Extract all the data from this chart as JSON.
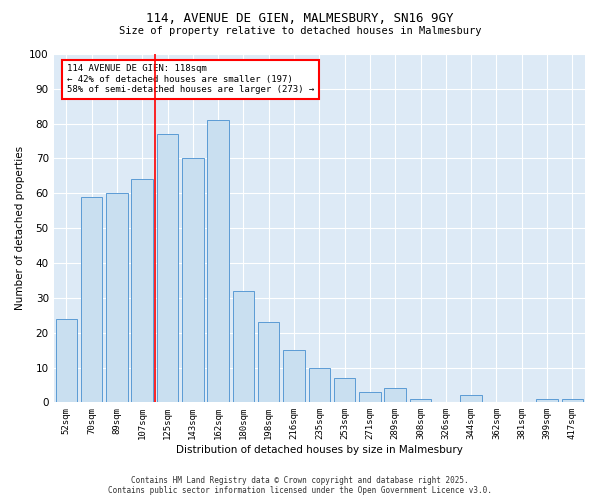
{
  "title_line1": "114, AVENUE DE GIEN, MALMESBURY, SN16 9GY",
  "title_line2": "Size of property relative to detached houses in Malmesbury",
  "xlabel": "Distribution of detached houses by size in Malmesbury",
  "ylabel": "Number of detached properties",
  "categories": [
    "52sqm",
    "70sqm",
    "89sqm",
    "107sqm",
    "125sqm",
    "143sqm",
    "162sqm",
    "180sqm",
    "198sqm",
    "216sqm",
    "235sqm",
    "253sqm",
    "271sqm",
    "289sqm",
    "308sqm",
    "326sqm",
    "344sqm",
    "362sqm",
    "381sqm",
    "399sqm",
    "417sqm"
  ],
  "values": [
    24,
    59,
    60,
    64,
    77,
    70,
    81,
    32,
    23,
    15,
    10,
    7,
    3,
    4,
    1,
    0,
    2,
    0,
    0,
    1,
    1
  ],
  "bar_color": "#c9dff0",
  "bar_edge_color": "#5b9bd5",
  "vline_x": 3.5,
  "vline_color": "red",
  "annotation_text": "114 AVENUE DE GIEN: 118sqm\n← 42% of detached houses are smaller (197)\n58% of semi-detached houses are larger (273) →",
  "annotation_box_color": "white",
  "annotation_box_edge_color": "red",
  "ylim": [
    0,
    100
  ],
  "yticks": [
    0,
    10,
    20,
    30,
    40,
    50,
    60,
    70,
    80,
    90,
    100
  ],
  "background_color": "#ddeaf6",
  "grid_color": "white",
  "footer_line1": "Contains HM Land Registry data © Crown copyright and database right 2025.",
  "footer_line2": "Contains public sector information licensed under the Open Government Licence v3.0."
}
